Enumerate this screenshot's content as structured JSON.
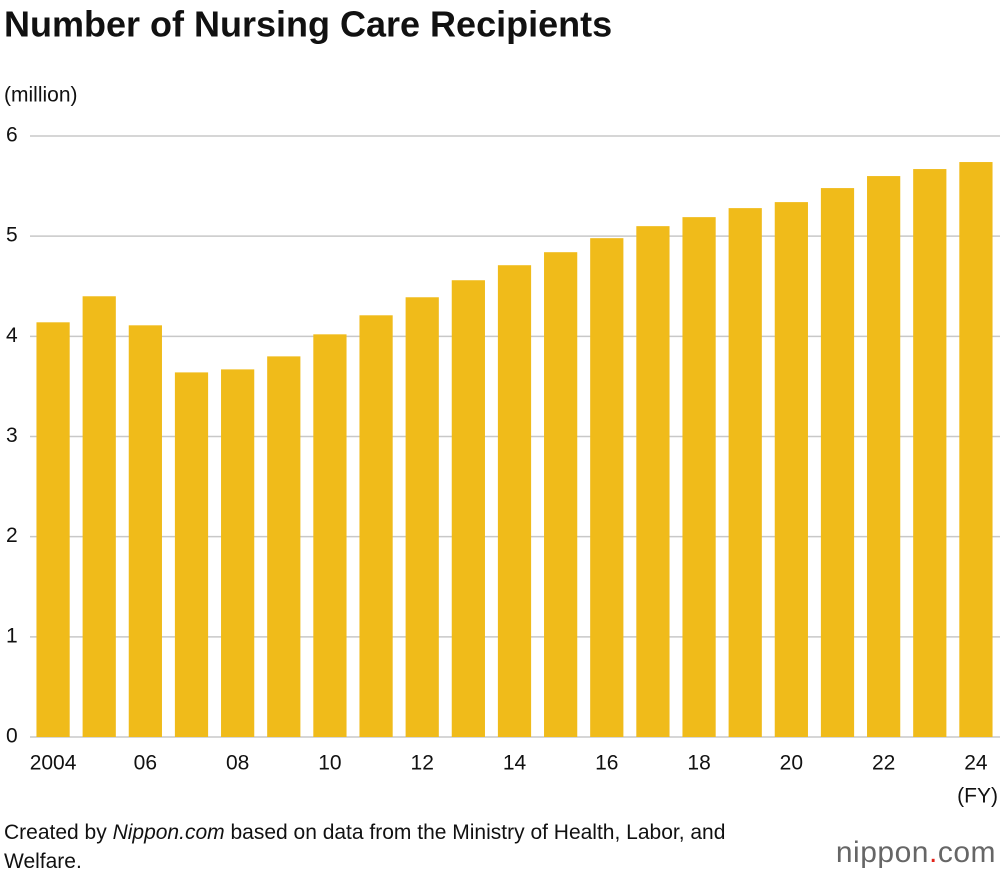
{
  "chart_data": {
    "type": "bar",
    "title": "Number of Nursing Care Recipients",
    "y_label": "(million)",
    "x_label": "(FY)",
    "categories": [
      "2004",
      null,
      "06",
      null,
      "08",
      null,
      "10",
      null,
      "12",
      null,
      "14",
      null,
      "16",
      null,
      "18",
      null,
      "20",
      null,
      "22",
      null,
      "24"
    ],
    "values": [
      4.14,
      4.4,
      4.11,
      3.64,
      3.67,
      3.8,
      4.02,
      4.21,
      4.39,
      4.56,
      4.71,
      4.84,
      4.98,
      5.1,
      5.19,
      5.28,
      5.34,
      5.48,
      5.6,
      5.67,
      5.74
    ],
    "color": "#f0bb1a",
    "ylim": [
      0,
      6
    ],
    "yticks": [
      0,
      1,
      2,
      3,
      4,
      5,
      6
    ],
    "grid": true
  },
  "source": {
    "prefix": "Created by ",
    "site": "Nippon.com",
    "suffix": " based on data from the Ministry of Health, Labor, and Welfare."
  },
  "logo": {
    "name": "nippon",
    "dot": ".",
    "tld": "com"
  }
}
